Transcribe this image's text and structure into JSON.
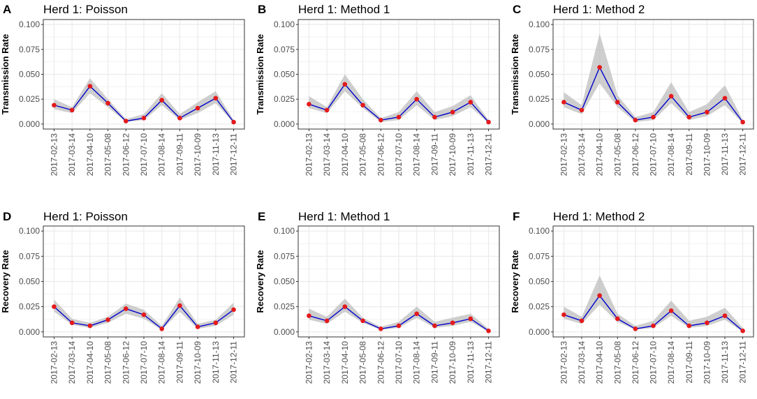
{
  "figure": {
    "panels": [
      {
        "letter": "A",
        "title": "Herd 1: Poisson"
      },
      {
        "letter": "B",
        "title": "Herd 1: Method 1"
      },
      {
        "letter": "C",
        "title": "Herd 1: Method 2"
      },
      {
        "letter": "D",
        "title": "Herd 1: Poisson"
      },
      {
        "letter": "E",
        "title": "Herd 1: Method 1"
      },
      {
        "letter": "F",
        "title": "Herd 1: Method 2"
      }
    ],
    "colors": {
      "line": "#0000CD",
      "point": "#E41A1C",
      "ribbon": "#BEBEBE",
      "grid": "#EBEBEB",
      "axis_text": "#4D4D4D",
      "border": "#333333"
    }
  },
  "chart_data": [
    {
      "type": "line",
      "title": "Herd 1: Poisson",
      "ylabel": "Transmission Rate",
      "xlabel": "",
      "categories": [
        "2017-02-13",
        "2017-03-14",
        "2017-04-10",
        "2017-05-08",
        "2017-06-12",
        "2017-07-10",
        "2017-08-14",
        "2017-09-11",
        "2017-10-09",
        "2017-11-13",
        "2017-12-11"
      ],
      "values": [
        0.019,
        0.014,
        0.038,
        0.021,
        0.003,
        0.006,
        0.024,
        0.006,
        0.016,
        0.026,
        0.002
      ],
      "lower": [
        0.015,
        0.011,
        0.031,
        0.017,
        0.002,
        0.004,
        0.019,
        0.004,
        0.011,
        0.021,
        0.001
      ],
      "upper": [
        0.025,
        0.017,
        0.046,
        0.025,
        0.005,
        0.01,
        0.031,
        0.01,
        0.022,
        0.033,
        0.004
      ],
      "ylim": [
        0,
        0.1
      ],
      "yticks": [
        "0.000",
        "0.025",
        "0.050",
        "0.075",
        "0.100"
      ],
      "grid": true
    },
    {
      "type": "line",
      "title": "Herd 1: Method 1",
      "ylabel": "Transmission Rate",
      "xlabel": "",
      "categories": [
        "2017-02-13",
        "2017-03-14",
        "2017-04-10",
        "2017-05-08",
        "2017-06-12",
        "2017-07-10",
        "2017-08-14",
        "2017-09-11",
        "2017-10-09",
        "2017-11-13",
        "2017-12-11"
      ],
      "values": [
        0.02,
        0.014,
        0.04,
        0.019,
        0.004,
        0.007,
        0.025,
        0.007,
        0.012,
        0.022,
        0.002
      ],
      "lower": [
        0.016,
        0.011,
        0.033,
        0.016,
        0.002,
        0.004,
        0.019,
        0.004,
        0.008,
        0.017,
        0.001
      ],
      "upper": [
        0.028,
        0.017,
        0.05,
        0.025,
        0.006,
        0.012,
        0.033,
        0.012,
        0.018,
        0.029,
        0.004
      ],
      "ylim": [
        0,
        0.1
      ],
      "yticks": [
        "0.000",
        "0.025",
        "0.050",
        "0.075",
        "0.100"
      ],
      "grid": true
    },
    {
      "type": "line",
      "title": "Herd 1: Method 2",
      "ylabel": "Transmission Rate",
      "xlabel": "",
      "categories": [
        "2017-02-13",
        "2017-03-14",
        "2017-04-10",
        "2017-05-08",
        "2017-06-12",
        "2017-07-10",
        "2017-08-14",
        "2017-09-11",
        "2017-10-09",
        "2017-11-13",
        "2017-12-11"
      ],
      "values": [
        0.022,
        0.014,
        0.057,
        0.022,
        0.004,
        0.007,
        0.028,
        0.007,
        0.012,
        0.026,
        0.002
      ],
      "lower": [
        0.017,
        0.01,
        0.041,
        0.017,
        0.002,
        0.004,
        0.021,
        0.004,
        0.008,
        0.019,
        0.001
      ],
      "upper": [
        0.032,
        0.019,
        0.091,
        0.029,
        0.007,
        0.012,
        0.042,
        0.012,
        0.02,
        0.039,
        0.004
      ],
      "ylim": [
        0,
        0.1
      ],
      "yticks": [
        "0.000",
        "0.025",
        "0.050",
        "0.075",
        "0.100"
      ],
      "grid": true
    },
    {
      "type": "line",
      "title": "Herd 1: Poisson",
      "ylabel": "Recovery Rate",
      "xlabel": "",
      "categories": [
        "2017-02-13",
        "2017-03-14",
        "2017-04-10",
        "2017-05-08",
        "2017-06-12",
        "2017-07-10",
        "2017-08-14",
        "2017-09-11",
        "2017-10-09",
        "2017-11-13",
        "2017-12-11"
      ],
      "values": [
        0.025,
        0.009,
        0.006,
        0.012,
        0.023,
        0.017,
        0.003,
        0.026,
        0.005,
        0.009,
        0.022
      ],
      "lower": [
        0.02,
        0.007,
        0.004,
        0.009,
        0.018,
        0.013,
        0.002,
        0.02,
        0.003,
        0.006,
        0.017
      ],
      "upper": [
        0.032,
        0.013,
        0.009,
        0.015,
        0.028,
        0.022,
        0.006,
        0.034,
        0.008,
        0.012,
        0.029
      ],
      "ylim": [
        0,
        0.1
      ],
      "yticks": [
        "0.000",
        "0.025",
        "0.050",
        "0.075",
        "0.100"
      ],
      "grid": true
    },
    {
      "type": "line",
      "title": "Herd 1: Method 1",
      "ylabel": "Recovery Rate",
      "xlabel": "",
      "categories": [
        "2017-02-13",
        "2017-03-14",
        "2017-04-10",
        "2017-05-08",
        "2017-06-12",
        "2017-07-10",
        "2017-08-14",
        "2017-09-11",
        "2017-10-09",
        "2017-11-13",
        "2017-12-11"
      ],
      "values": [
        0.016,
        0.011,
        0.025,
        0.011,
        0.003,
        0.006,
        0.018,
        0.006,
        0.009,
        0.013,
        0.001
      ],
      "lower": [
        0.012,
        0.008,
        0.02,
        0.009,
        0.002,
        0.004,
        0.014,
        0.004,
        0.006,
        0.01,
        0.0
      ],
      "upper": [
        0.023,
        0.015,
        0.033,
        0.014,
        0.005,
        0.01,
        0.025,
        0.01,
        0.014,
        0.018,
        0.003
      ],
      "ylim": [
        0,
        0.1
      ],
      "yticks": [
        "0.000",
        "0.025",
        "0.050",
        "0.075",
        "0.100"
      ],
      "grid": true
    },
    {
      "type": "line",
      "title": "Herd 1: Method 2",
      "ylabel": "Recovery Rate",
      "xlabel": "",
      "categories": [
        "2017-02-13",
        "2017-03-14",
        "2017-04-10",
        "2017-05-08",
        "2017-06-12",
        "2017-07-10",
        "2017-08-14",
        "2017-09-11",
        "2017-10-09",
        "2017-11-13",
        "2017-12-11"
      ],
      "values": [
        0.017,
        0.011,
        0.036,
        0.013,
        0.003,
        0.006,
        0.021,
        0.006,
        0.009,
        0.016,
        0.001
      ],
      "lower": [
        0.013,
        0.008,
        0.027,
        0.01,
        0.002,
        0.004,
        0.016,
        0.004,
        0.006,
        0.012,
        0.0
      ],
      "upper": [
        0.025,
        0.015,
        0.056,
        0.018,
        0.006,
        0.011,
        0.031,
        0.011,
        0.015,
        0.024,
        0.004
      ],
      "ylim": [
        0,
        0.1
      ],
      "yticks": [
        "0.000",
        "0.025",
        "0.050",
        "0.075",
        "0.100"
      ],
      "grid": true
    }
  ]
}
